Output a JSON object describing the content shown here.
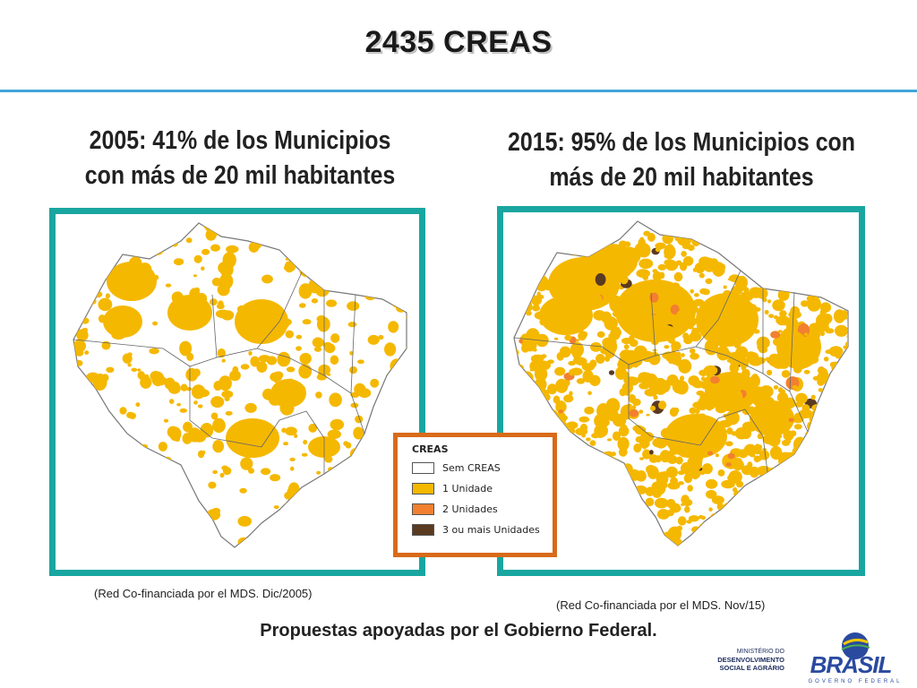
{
  "slide": {
    "title": "2435 CREAS",
    "left_heading_line1": "2005: 41% de los Municipios",
    "left_heading_line2": "con más de 20 mil habitantes",
    "right_heading_line1": "2015: 95% de los Municipios con",
    "right_heading_line2": "más de 20 mil habitantes",
    "left_caption": "(Red Co-financiada por el MDS. Dic/2005)",
    "right_caption": "(Red Co-financiada por el MDS. Nov/15)",
    "footer": "Propuestas apoyadas por el Gobierno Federal."
  },
  "legend": {
    "title": "CREAS",
    "items": [
      {
        "label": "Sem CREAS",
        "color": "#ffffff"
      },
      {
        "label": "1 Unidade",
        "color": "#f5b800"
      },
      {
        "label": "2 Unidades",
        "color": "#f28030"
      },
      {
        "label": "3 ou mais Unidades",
        "color": "#5a3a20"
      }
    ]
  },
  "logos": {
    "ministry_line1": "MINISTÉRIO DO",
    "ministry_line2": "DESENVOLVIMENTO",
    "ministry_line3": "SOCIAL E AGRÁRIO",
    "brasil": "BRASIL",
    "governo": "GOVERNO FEDERAL"
  },
  "colors": {
    "frame": "#19a6a0",
    "legend_frame": "#d96a1a",
    "rule": "#43a6d9",
    "map_fill": "#f5b800"
  }
}
